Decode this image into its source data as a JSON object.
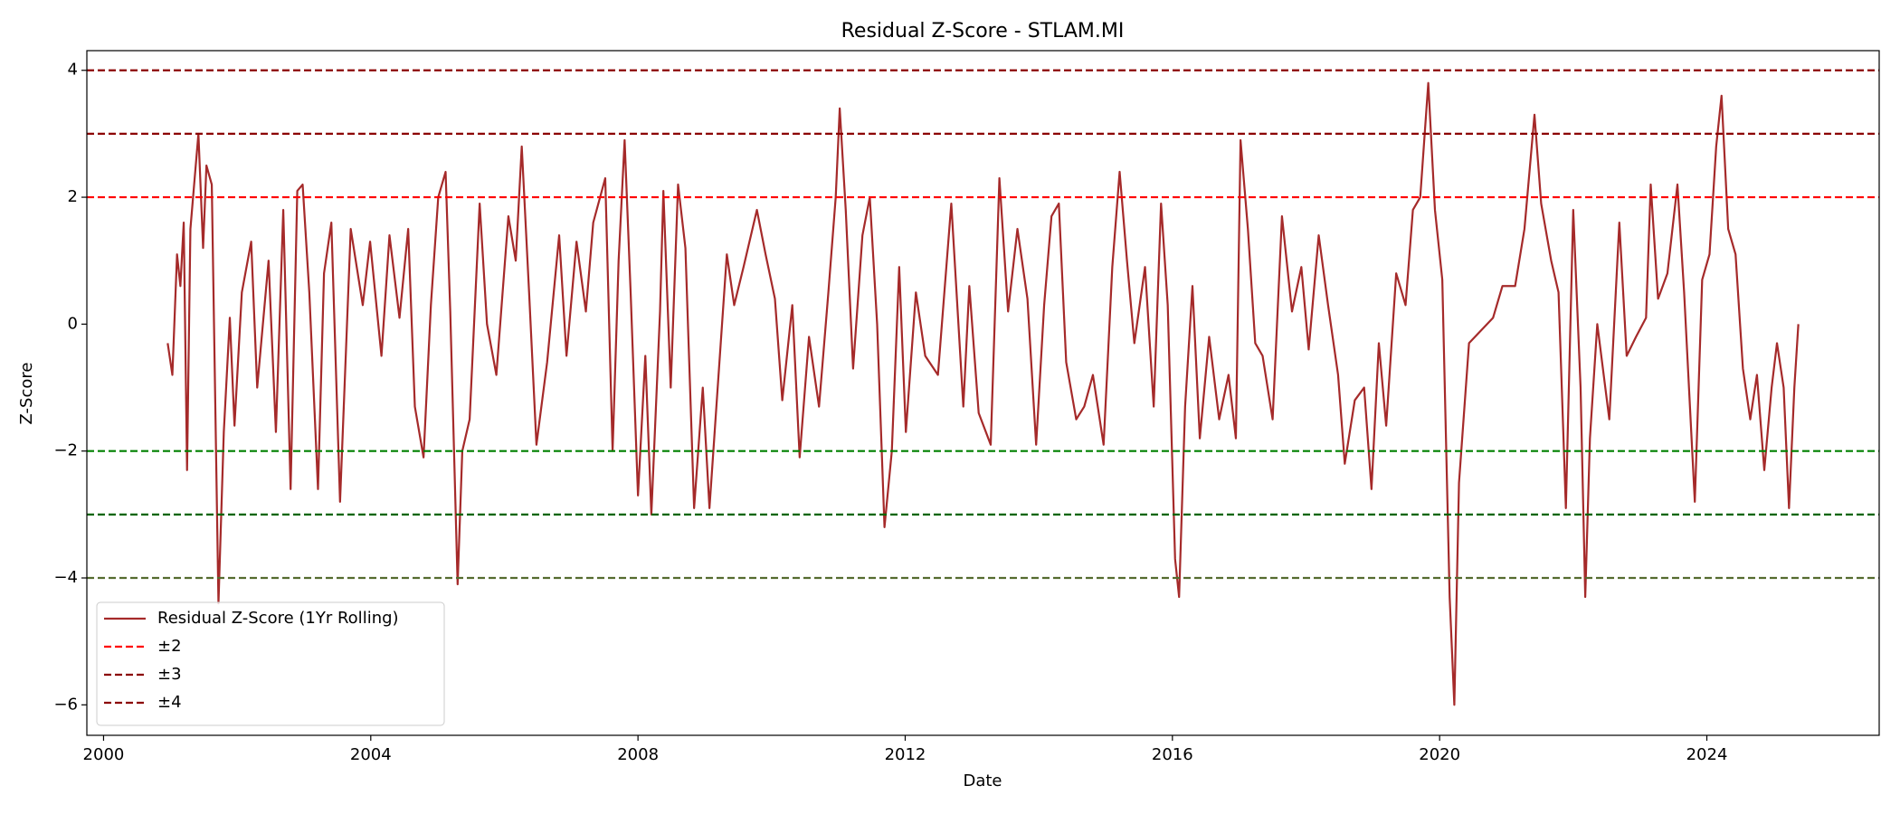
{
  "chart_data": {
    "type": "line",
    "title": "Residual Z-Score - STLAM.MI",
    "x_label": "Date",
    "y_label": "Z-Score",
    "x": [
      2000.96,
      2001.03,
      2001.1,
      2001.15,
      2001.2,
      2001.25,
      2001.3,
      2001.42,
      2001.49,
      2001.54,
      2001.62,
      2001.72,
      2001.8,
      2001.89,
      2001.96,
      2002.07,
      2002.21,
      2002.3,
      2002.47,
      2002.58,
      2002.69,
      2002.8,
      2002.9,
      2002.98,
      2003.08,
      2003.21,
      2003.3,
      2003.41,
      2003.54,
      2003.7,
      2003.88,
      2003.99,
      2004.16,
      2004.28,
      2004.43,
      2004.56,
      2004.66,
      2004.79,
      2004.9,
      2005.01,
      2005.12,
      2005.19,
      2005.3,
      2005.37,
      2005.48,
      2005.63,
      2005.74,
      2005.88,
      2006.06,
      2006.17,
      2006.26,
      2006.37,
      2006.48,
      2006.64,
      2006.82,
      2006.93,
      2007.08,
      2007.22,
      2007.33,
      2007.51,
      2007.62,
      2007.71,
      2007.8,
      2007.89,
      2008.0,
      2008.11,
      2008.2,
      2008.33,
      2008.38,
      2008.49,
      2008.6,
      2008.71,
      2008.84,
      2008.97,
      2009.07,
      2009.18,
      2009.33,
      2009.44,
      2009.58,
      2009.78,
      2009.91,
      2010.05,
      2010.16,
      2010.31,
      2010.42,
      2010.56,
      2010.71,
      2010.85,
      2010.96,
      2011.02,
      2011.11,
      2011.22,
      2011.36,
      2011.47,
      2011.58,
      2011.69,
      2011.8,
      2011.91,
      2012.01,
      2012.16,
      2012.3,
      2012.49,
      2012.69,
      2012.87,
      2012.96,
      2013.1,
      2013.28,
      2013.41,
      2013.54,
      2013.68,
      2013.83,
      2013.96,
      2014.08,
      2014.19,
      2014.3,
      2014.41,
      2014.56,
      2014.68,
      2014.81,
      2014.97,
      2015.1,
      2015.21,
      2015.32,
      2015.43,
      2015.59,
      2015.72,
      2015.83,
      2015.93,
      2016.04,
      2016.1,
      2016.19,
      2016.3,
      2016.41,
      2016.55,
      2016.7,
      2016.84,
      2016.95,
      2017.02,
      2017.13,
      2017.24,
      2017.35,
      2017.5,
      2017.64,
      2017.79,
      2017.93,
      2018.04,
      2018.19,
      2018.33,
      2018.48,
      2018.58,
      2018.73,
      2018.87,
      2018.98,
      2019.09,
      2019.2,
      2019.35,
      2019.49,
      2019.6,
      2019.71,
      2019.83,
      2019.93,
      2020.04,
      2020.15,
      2020.22,
      2020.29,
      2020.44,
      2020.62,
      2020.8,
      2020.94,
      2021.13,
      2021.27,
      2021.42,
      2021.52,
      2021.67,
      2021.78,
      2021.89,
      2022.0,
      2022.11,
      2022.18,
      2022.25,
      2022.36,
      2022.54,
      2022.69,
      2022.8,
      2022.94,
      2023.09,
      2023.16,
      2023.27,
      2023.41,
      2023.56,
      2023.66,
      2023.82,
      2023.93,
      2024.04,
      2024.14,
      2024.22,
      2024.32,
      2024.43,
      2024.54,
      2024.65,
      2024.75,
      2024.86,
      2024.97,
      2025.05,
      2025.15,
      2025.23,
      2025.31,
      2025.37
    ],
    "series": [
      {
        "name": "Residual Z-Score (1Yr Rolling)",
        "color": "#a52a2a",
        "values": [
          -0.3,
          -0.8,
          1.1,
          0.6,
          1.6,
          -2.3,
          1.5,
          3.0,
          1.2,
          2.5,
          2.2,
          -4.4,
          -1.7,
          0.1,
          -1.6,
          0.5,
          1.3,
          -1.0,
          1.0,
          -1.7,
          1.8,
          -2.6,
          2.1,
          2.2,
          0.5,
          -2.6,
          0.8,
          1.6,
          -2.8,
          1.5,
          0.3,
          1.3,
          -0.5,
          1.4,
          0.1,
          1.5,
          -1.3,
          -2.1,
          0.3,
          2.0,
          2.4,
          0.2,
          -4.1,
          -2.0,
          -1.5,
          1.9,
          0.0,
          -0.8,
          1.7,
          1.0,
          2.8,
          0.5,
          -1.9,
          -0.6,
          1.4,
          -0.5,
          1.3,
          0.2,
          1.6,
          2.3,
          -2.0,
          1.0,
          2.9,
          0.5,
          -2.7,
          -0.5,
          -3.0,
          0.2,
          2.1,
          -1.0,
          2.2,
          1.2,
          -2.9,
          -1.0,
          -2.9,
          -1.2,
          1.1,
          0.3,
          0.9,
          1.8,
          1.1,
          0.4,
          -1.2,
          0.3,
          -2.1,
          -0.2,
          -1.3,
          0.5,
          2.0,
          3.4,
          1.8,
          -0.7,
          1.4,
          2.0,
          0.0,
          -3.2,
          -2.0,
          0.9,
          -1.7,
          0.5,
          -0.5,
          -0.8,
          1.9,
          -1.3,
          0.6,
          -1.4,
          -1.9,
          2.3,
          0.2,
          1.5,
          0.4,
          -1.9,
          0.3,
          1.7,
          1.9,
          -0.6,
          -1.5,
          -1.3,
          -0.8,
          -1.9,
          0.9,
          2.4,
          1.0,
          -0.3,
          0.9,
          -1.3,
          1.9,
          0.3,
          -3.7,
          -4.3,
          -1.3,
          0.6,
          -1.8,
          -0.2,
          -1.5,
          -0.8,
          -1.8,
          2.9,
          1.5,
          -0.3,
          -0.5,
          -1.5,
          1.7,
          0.2,
          0.9,
          -0.4,
          1.4,
          0.3,
          -0.8,
          -2.2,
          -1.2,
          -1.0,
          -2.6,
          -0.3,
          -1.6,
          0.8,
          0.3,
          1.8,
          2.0,
          3.8,
          1.8,
          0.7,
          -4.3,
          -6.0,
          -2.5,
          -0.3,
          -0.1,
          0.1,
          0.6,
          0.6,
          1.5,
          3.3,
          1.9,
          1.0,
          0.5,
          -2.9,
          1.8,
          -1.0,
          -4.3,
          -1.8,
          0.0,
          -1.5,
          1.6,
          -0.5,
          -0.2,
          0.1,
          2.2,
          0.4,
          0.8,
          2.2,
          0.5,
          -2.8,
          0.7,
          1.1,
          2.8,
          3.6,
          1.5,
          1.1,
          -0.7,
          -1.5,
          -0.8,
          -2.3,
          -1.0,
          -0.3,
          -1.0,
          -2.9,
          -1.0,
          0.0
        ]
      }
    ],
    "thresholds": [
      {
        "name": "±2",
        "levels": [
          2,
          -2
        ],
        "colors": [
          "#ff0000",
          "#008000"
        ]
      },
      {
        "name": "±3",
        "levels": [
          3,
          -3
        ],
        "colors": [
          "#8b0000",
          "#006400"
        ]
      },
      {
        "name": "±4",
        "levels": [
          4,
          -4
        ],
        "colors": [
          "#8b0000",
          "#556b2f"
        ]
      }
    ],
    "xlim": [
      1999.75,
      2026.58
    ],
    "xticks": [
      2000,
      2004,
      2008,
      2012,
      2016,
      2020,
      2024
    ],
    "ylim": [
      -6.48,
      4.31
    ],
    "yticks": [
      {
        "value": -6,
        "label": "−6"
      },
      {
        "value": -4,
        "label": "−4"
      },
      {
        "value": -2,
        "label": "−2"
      },
      0,
      2,
      4
    ],
    "legend": "lower left"
  }
}
